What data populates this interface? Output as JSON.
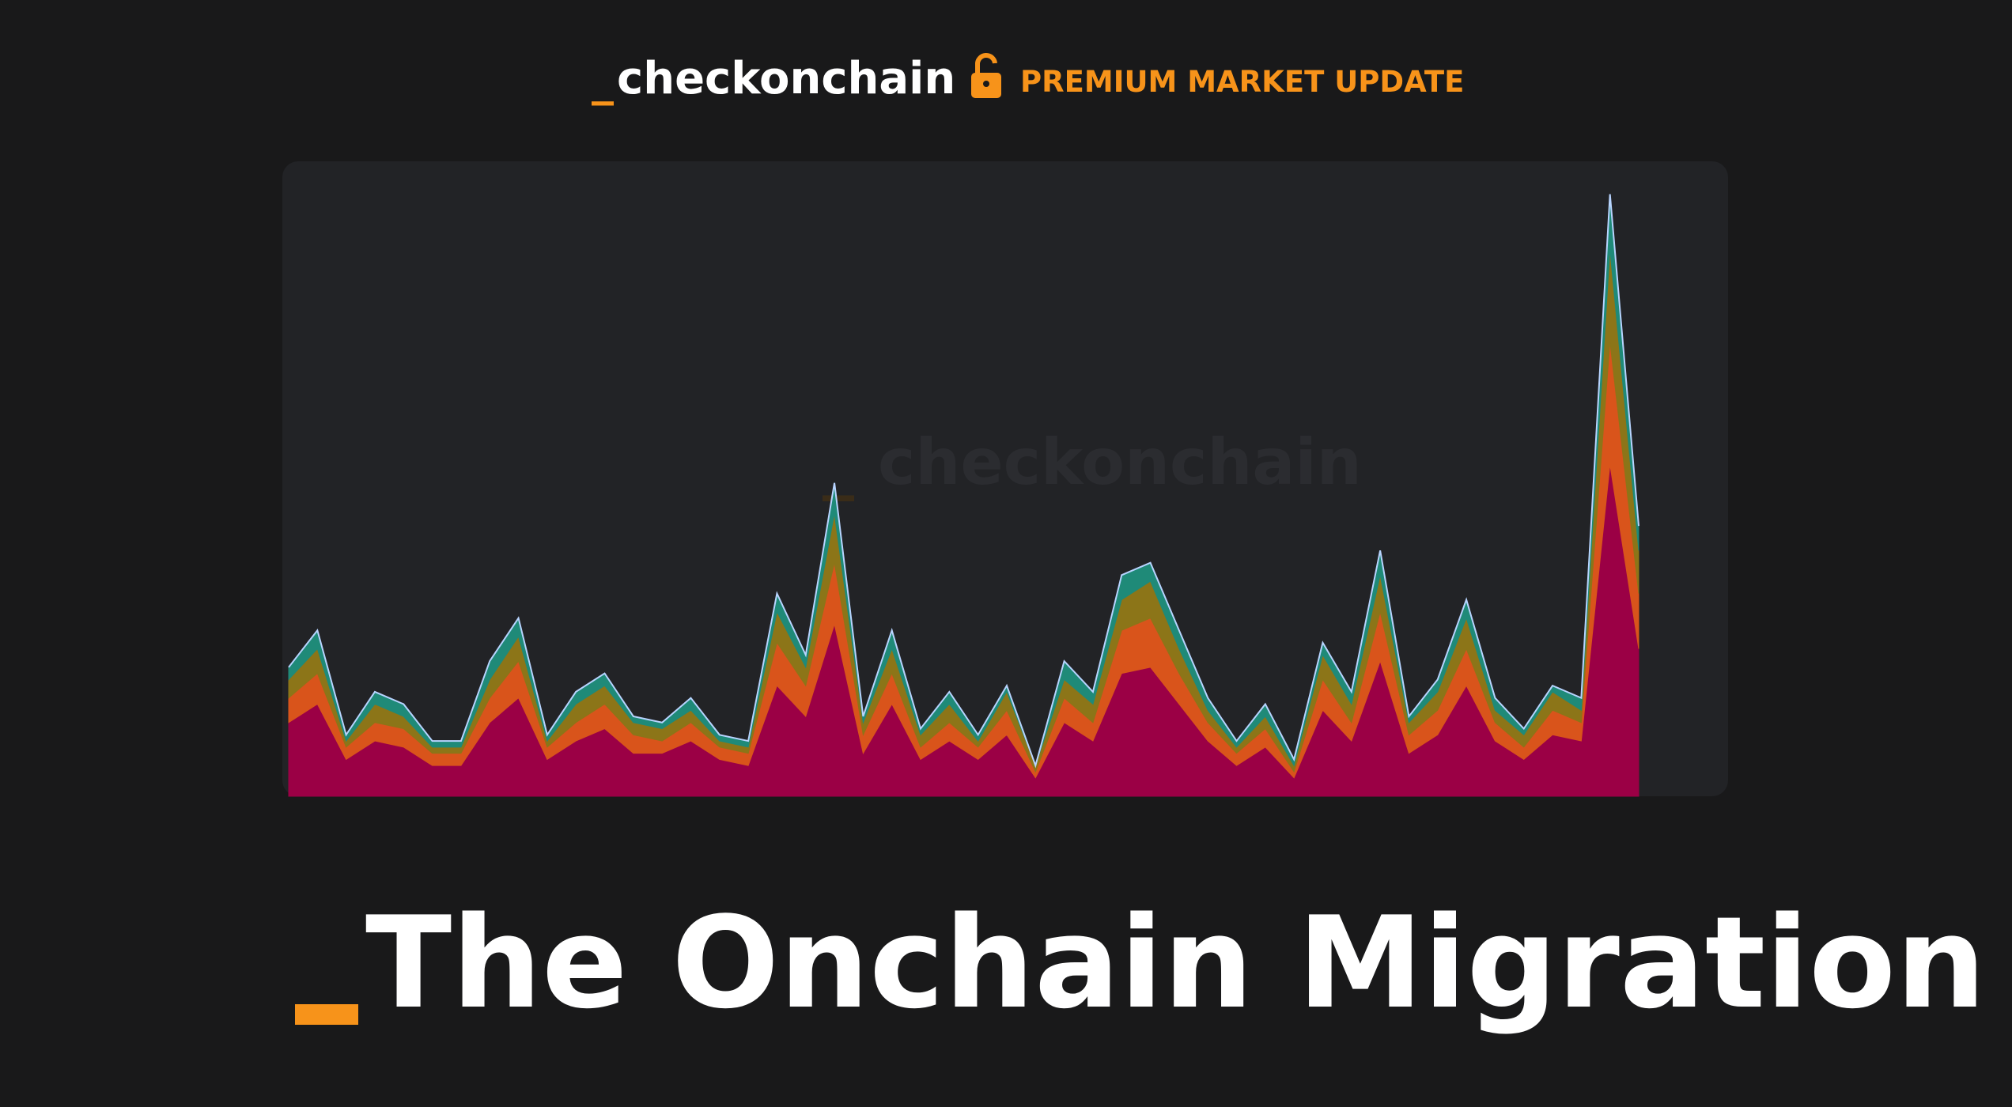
{
  "header": {
    "logo_mark": "_",
    "logo": "checkonchain",
    "badge": "PREMIUM MARKET UPDATE"
  },
  "chart_data": {
    "type": "area",
    "stacked": true,
    "watermark": {
      "mark": "_",
      "text": "checkonchain"
    },
    "categories": [
      null,
      null,
      null,
      null,
      null,
      null,
      null,
      null,
      null,
      null,
      null,
      null,
      null,
      null,
      null,
      null,
      null,
      null,
      null,
      null,
      null,
      null,
      null,
      null,
      null,
      null,
      null,
      null,
      null,
      null,
      null,
      null,
      null,
      null,
      null,
      null,
      null,
      null,
      null,
      null,
      null,
      null,
      null,
      null,
      null,
      null,
      null,
      null
    ],
    "ylim": [
      0,
      100
    ],
    "series": [
      {
        "color": "#9b0045",
        "values": [
          12,
          15,
          6,
          9,
          8,
          5,
          5,
          12,
          16,
          6,
          9,
          11,
          7,
          7,
          9,
          6,
          5,
          18,
          13,
          28,
          7,
          15,
          6,
          9,
          6,
          10,
          3,
          12,
          9,
          20,
          21,
          15,
          9,
          5,
          8,
          3,
          14,
          9,
          22,
          7,
          10,
          18,
          9,
          6,
          10,
          9,
          54,
          24
        ]
      },
      {
        "color": "#d9541b",
        "values": [
          4,
          5,
          2,
          3,
          3,
          2,
          2,
          4,
          6,
          2,
          3,
          4,
          3,
          2,
          3,
          2,
          2,
          7,
          5,
          10,
          3,
          5,
          2,
          3,
          2,
          4,
          1,
          4,
          3,
          7,
          8,
          5,
          3,
          2,
          3,
          1,
          5,
          3,
          8,
          3,
          4,
          6,
          3,
          2,
          4,
          3,
          20,
          9
        ]
      },
      {
        "color": "#8c7518",
        "values": [
          3,
          4,
          1,
          3,
          2,
          1,
          1,
          3,
          4,
          1,
          3,
          3,
          2,
          2,
          2,
          1,
          1,
          5,
          3,
          8,
          2,
          4,
          2,
          3,
          1,
          3,
          1,
          3,
          3,
          5,
          6,
          4,
          2,
          1,
          2,
          1,
          4,
          3,
          6,
          2,
          3,
          5,
          2,
          2,
          3,
          2,
          15,
          7
        ]
      },
      {
        "color": "#1f8a78",
        "values": [
          2,
          3,
          1,
          2,
          2,
          1,
          1,
          3,
          3,
          1,
          2,
          2,
          1,
          1,
          2,
          1,
          1,
          3,
          2,
          5,
          1,
          3,
          1,
          2,
          1,
          1,
          0,
          3,
          2,
          4,
          3,
          3,
          2,
          1,
          2,
          1,
          2,
          2,
          4,
          1,
          2,
          3,
          2,
          1,
          1,
          2,
          9,
          4
        ]
      }
    ]
  },
  "title": "The Onchain Migration"
}
